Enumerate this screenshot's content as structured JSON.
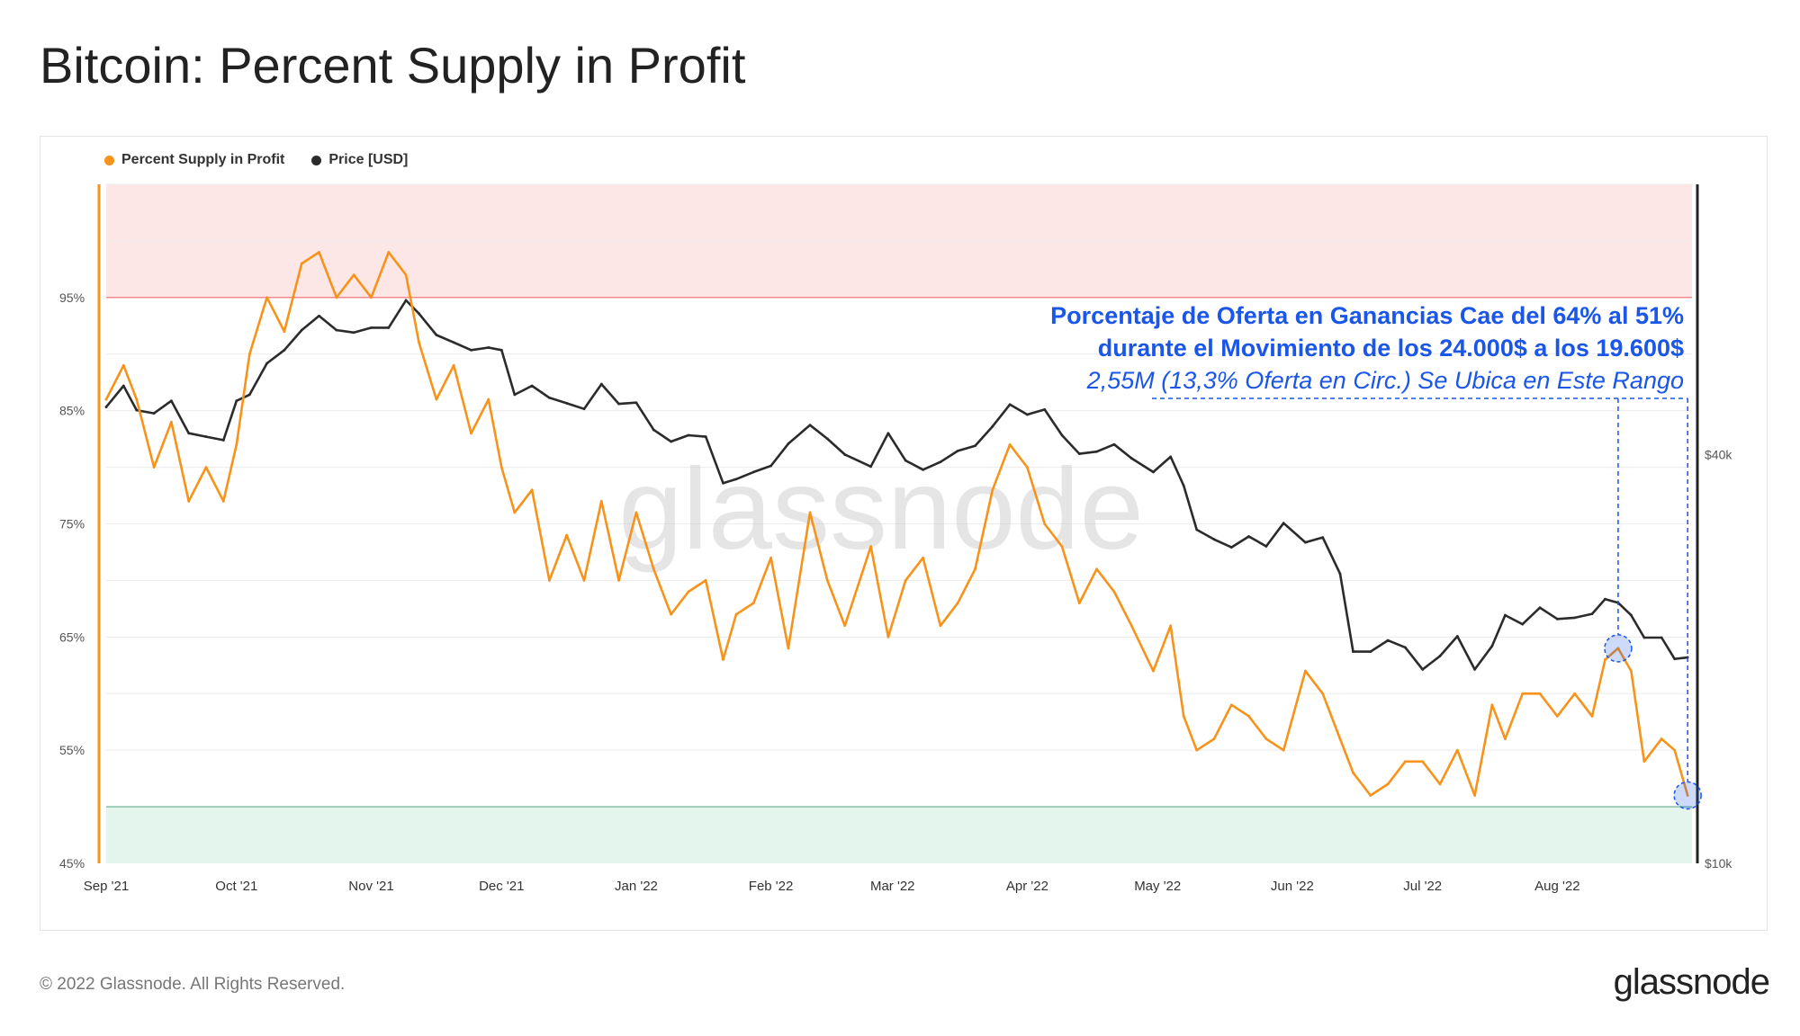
{
  "page": {
    "title": "Bitcoin: Percent Supply in Profit",
    "copyright": "© 2022 Glassnode. All Rights Reserved.",
    "logo": "glassnode",
    "watermark": "glassnode"
  },
  "colors": {
    "supply": "#f7931a",
    "price": "#2b2b2b",
    "annotation": "#1a56e8",
    "upper_band": "#fde6e6",
    "upper_line": "#ef6b6b",
    "lower_band": "#e4f5ee",
    "lower_line": "#5fae8a"
  },
  "legend": {
    "supply": "Percent Supply in Profit",
    "price": "Price [USD]"
  },
  "annotation": {
    "line1": "Porcentaje de Oferta en Ganancias Cae del 64% al 51%",
    "line2": "durante el Movimiento de los 24.000$ a los 19.600$",
    "line3": "2,55M (13,3% Oferta en Circ.) Se Ubica en Este Rango"
  },
  "chart_data": {
    "type": "line",
    "x_ticks": [
      "Sep '21",
      "Oct '21",
      "Nov '21",
      "Dec '21",
      "Jan '22",
      "Feb '22",
      "Mar '22",
      "Apr '22",
      "May '22",
      "Jun '22",
      "Jul '22",
      "Aug '22"
    ],
    "y_left_ticks": [
      "95%",
      "85%",
      "75%",
      "65%",
      "55%",
      "45%"
    ],
    "y_left_range": [
      45,
      105
    ],
    "y_right_ticks": [
      "$40k",
      "$10k"
    ],
    "y_right_scale": "log",
    "bands": [
      {
        "from": 95,
        "to": 105,
        "zone": "upper"
      },
      {
        "from": 45,
        "to": 50,
        "zone": "lower"
      }
    ],
    "series": [
      {
        "name": "Percent Supply in Profit",
        "axis": "left",
        "unit": "%",
        "x": [
          "2021-09-01",
          "2021-09-05",
          "2021-09-08",
          "2021-09-12",
          "2021-09-16",
          "2021-09-20",
          "2021-09-24",
          "2021-09-28",
          "2021-10-01",
          "2021-10-04",
          "2021-10-08",
          "2021-10-12",
          "2021-10-16",
          "2021-10-20",
          "2021-10-24",
          "2021-10-28",
          "2021-11-01",
          "2021-11-05",
          "2021-11-09",
          "2021-11-12",
          "2021-11-16",
          "2021-11-20",
          "2021-11-24",
          "2021-11-28",
          "2021-12-01",
          "2021-12-04",
          "2021-12-08",
          "2021-12-12",
          "2021-12-16",
          "2021-12-20",
          "2021-12-24",
          "2021-12-28",
          "2022-01-01",
          "2022-01-05",
          "2022-01-09",
          "2022-01-13",
          "2022-01-17",
          "2022-01-21",
          "2022-01-24",
          "2022-01-28",
          "2022-02-01",
          "2022-02-05",
          "2022-02-10",
          "2022-02-14",
          "2022-02-18",
          "2022-02-24",
          "2022-02-28",
          "2022-03-04",
          "2022-03-08",
          "2022-03-12",
          "2022-03-16",
          "2022-03-20",
          "2022-03-24",
          "2022-03-28",
          "2022-04-01",
          "2022-04-05",
          "2022-04-09",
          "2022-04-13",
          "2022-04-17",
          "2022-04-21",
          "2022-04-25",
          "2022-04-30",
          "2022-05-04",
          "2022-05-07",
          "2022-05-10",
          "2022-05-14",
          "2022-05-18",
          "2022-05-22",
          "2022-05-26",
          "2022-05-30",
          "2022-06-04",
          "2022-06-08",
          "2022-06-12",
          "2022-06-15",
          "2022-06-19",
          "2022-06-23",
          "2022-06-27",
          "2022-07-01",
          "2022-07-05",
          "2022-07-09",
          "2022-07-13",
          "2022-07-17",
          "2022-07-20",
          "2022-07-24",
          "2022-07-28",
          "2022-08-01",
          "2022-08-05",
          "2022-08-09",
          "2022-08-12",
          "2022-08-15",
          "2022-08-18",
          "2022-08-21",
          "2022-08-25",
          "2022-08-28",
          "2022-08-31"
        ],
        "values": [
          86,
          89,
          86,
          80,
          84,
          77,
          80,
          77,
          82,
          90,
          95,
          92,
          98,
          99,
          95,
          97,
          95,
          99,
          97,
          91,
          86,
          89,
          83,
          86,
          80,
          76,
          78,
          70,
          74,
          70,
          77,
          70,
          76,
          71,
          67,
          69,
          70,
          63,
          67,
          68,
          72,
          64,
          76,
          70,
          66,
          73,
          65,
          70,
          72,
          66,
          68,
          71,
          78,
          82,
          80,
          75,
          73,
          68,
          71,
          69,
          66,
          62,
          66,
          58,
          55,
          56,
          59,
          58,
          56,
          55,
          62,
          60,
          56,
          53,
          51,
          52,
          54,
          54,
          52,
          55,
          51,
          59,
          56,
          60,
          60,
          58,
          60,
          58,
          63,
          64,
          62,
          54,
          56,
          55,
          51
        ]
      },
      {
        "name": "Price [USD]",
        "axis": "right",
        "unit": "USD",
        "x": [
          "2021-09-01",
          "2021-09-05",
          "2021-09-08",
          "2021-09-12",
          "2021-09-16",
          "2021-09-20",
          "2021-09-24",
          "2021-09-28",
          "2021-10-01",
          "2021-10-04",
          "2021-10-08",
          "2021-10-12",
          "2021-10-16",
          "2021-10-20",
          "2021-10-24",
          "2021-10-28",
          "2021-11-01",
          "2021-11-05",
          "2021-11-09",
          "2021-11-12",
          "2021-11-16",
          "2021-11-20",
          "2021-11-24",
          "2021-11-28",
          "2021-12-01",
          "2021-12-04",
          "2021-12-08",
          "2021-12-12",
          "2021-12-16",
          "2021-12-20",
          "2021-12-24",
          "2021-12-28",
          "2022-01-01",
          "2022-01-05",
          "2022-01-09",
          "2022-01-13",
          "2022-01-17",
          "2022-01-21",
          "2022-01-24",
          "2022-01-28",
          "2022-02-01",
          "2022-02-05",
          "2022-02-10",
          "2022-02-14",
          "2022-02-18",
          "2022-02-24",
          "2022-02-28",
          "2022-03-04",
          "2022-03-08",
          "2022-03-12",
          "2022-03-16",
          "2022-03-20",
          "2022-03-24",
          "2022-03-28",
          "2022-04-01",
          "2022-04-05",
          "2022-04-09",
          "2022-04-13",
          "2022-04-17",
          "2022-04-21",
          "2022-04-25",
          "2022-04-30",
          "2022-05-04",
          "2022-05-07",
          "2022-05-10",
          "2022-05-14",
          "2022-05-18",
          "2022-05-22",
          "2022-05-26",
          "2022-05-30",
          "2022-06-04",
          "2022-06-08",
          "2022-06-12",
          "2022-06-15",
          "2022-06-19",
          "2022-06-23",
          "2022-06-27",
          "2022-07-01",
          "2022-07-05",
          "2022-07-09",
          "2022-07-13",
          "2022-07-17",
          "2022-07-20",
          "2022-07-24",
          "2022-07-28",
          "2022-08-01",
          "2022-08-05",
          "2022-08-09",
          "2022-08-12",
          "2022-08-15",
          "2022-08-18",
          "2022-08-21",
          "2022-08-25",
          "2022-08-28",
          "2022-08-31"
        ],
        "values": [
          47000,
          50500,
          46500,
          46000,
          48000,
          43000,
          42500,
          42000,
          48000,
          49000,
          54500,
          57000,
          61000,
          64000,
          61000,
          60500,
          61500,
          61500,
          67500,
          64500,
          60000,
          58500,
          57000,
          57500,
          57000,
          49000,
          50500,
          48500,
          47600,
          46700,
          50800,
          47500,
          47700,
          43500,
          41800,
          42700,
          42500,
          36300,
          36800,
          37700,
          38500,
          41500,
          44200,
          42200,
          40000,
          38400,
          43000,
          39200,
          38000,
          39000,
          40500,
          41200,
          44000,
          47400,
          45800,
          46600,
          42700,
          40100,
          40400,
          41400,
          39500,
          37700,
          39700,
          36000,
          31000,
          30000,
          29200,
          30300,
          29300,
          31700,
          29700,
          30200,
          26700,
          20500,
          20500,
          21300,
          20800,
          19300,
          20200,
          21600,
          19300,
          20900,
          23200,
          22500,
          23800,
          22900,
          23000,
          23300,
          24500,
          24200,
          23200,
          21500,
          21500,
          20000,
          20100
        ]
      }
    ]
  }
}
